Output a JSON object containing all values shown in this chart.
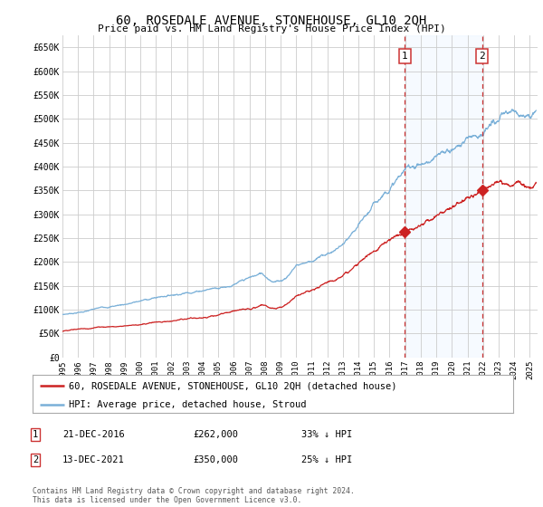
{
  "title": "60, ROSEDALE AVENUE, STONEHOUSE, GL10 2QH",
  "subtitle": "Price paid vs. HM Land Registry's House Price Index (HPI)",
  "ylim": [
    0,
    675000
  ],
  "yticks": [
    0,
    50000,
    100000,
    150000,
    200000,
    250000,
    300000,
    350000,
    400000,
    450000,
    500000,
    550000,
    600000,
    650000
  ],
  "ytick_labels": [
    "£0",
    "£50K",
    "£100K",
    "£150K",
    "£200K",
    "£250K",
    "£300K",
    "£350K",
    "£400K",
    "£450K",
    "£500K",
    "£550K",
    "£600K",
    "£650K"
  ],
  "xlim_start": 1995.0,
  "xlim_end": 2025.5,
  "xtick_years": [
    1995,
    1996,
    1997,
    1998,
    1999,
    2000,
    2001,
    2002,
    2003,
    2004,
    2005,
    2006,
    2007,
    2008,
    2009,
    2010,
    2011,
    2012,
    2013,
    2014,
    2015,
    2016,
    2017,
    2018,
    2019,
    2020,
    2021,
    2022,
    2023,
    2024,
    2025
  ],
  "fig_bg_color": "#ffffff",
  "plot_bg_color": "#ffffff",
  "shade_color": "#ddeeff",
  "grid_color": "#cccccc",
  "hpi_color": "#7ab0d8",
  "price_color": "#cc2222",
  "vline_color": "#cc3333",
  "sale1_year": 2016.97,
  "sale1_price": 262000,
  "sale2_year": 2021.95,
  "sale2_price": 350000,
  "sale1_date": "21-DEC-2016",
  "sale1_amount": "£262,000",
  "sale1_pct": "33% ↓ HPI",
  "sale2_date": "13-DEC-2021",
  "sale2_amount": "£350,000",
  "sale2_pct": "25% ↓ HPI",
  "legend1": "60, ROSEDALE AVENUE, STONEHOUSE, GL10 2QH (detached house)",
  "legend2": "HPI: Average price, detached house, Stroud",
  "footnote": "Contains HM Land Registry data © Crown copyright and database right 2024.\nThis data is licensed under the Open Government Licence v3.0."
}
